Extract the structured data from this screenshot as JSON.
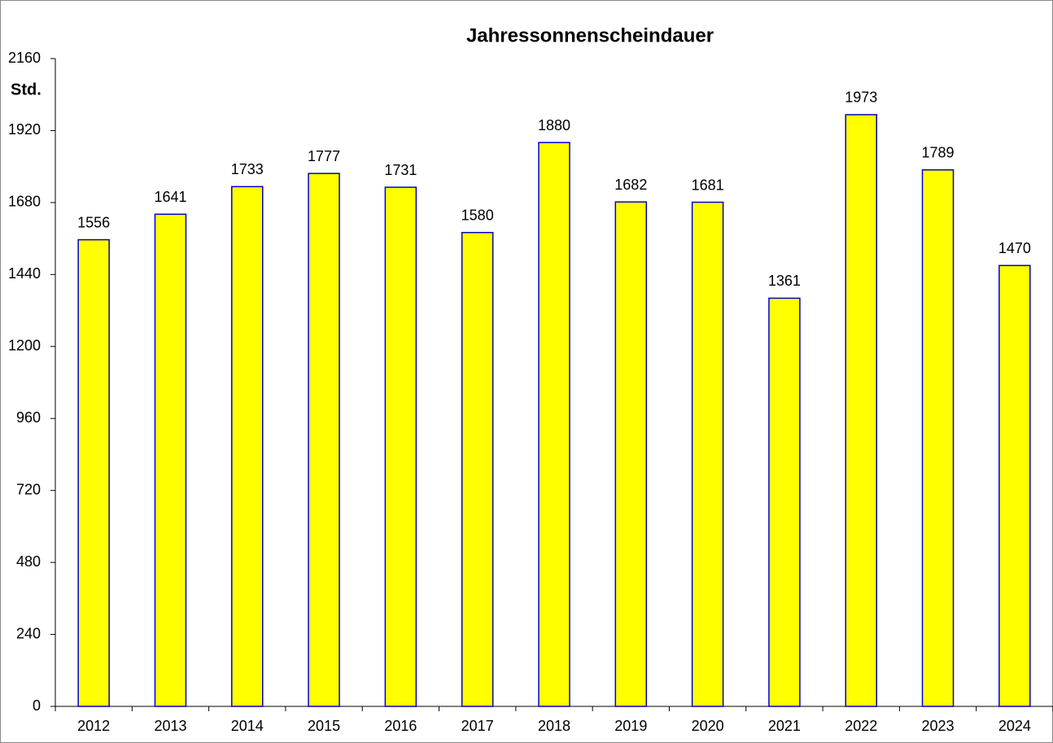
{
  "chart_data": {
    "type": "bar",
    "title": "Jahressonnenscheindauer",
    "y_label": "Std.",
    "categories": [
      "2012",
      "2013",
      "2014",
      "2015",
      "2016",
      "2017",
      "2018",
      "2019",
      "2020",
      "2021",
      "2022",
      "2023",
      "2024"
    ],
    "values": [
      1556,
      1641,
      1733,
      1777,
      1731,
      1580,
      1880,
      1682,
      1681,
      1361,
      1973,
      1789,
      1470
    ],
    "color": "#ffff00",
    "edge_color": "#0000cc",
    "ylim": [
      0,
      2160
    ],
    "yticks": [
      0,
      240,
      480,
      720,
      960,
      1200,
      1440,
      1680,
      1920,
      2160
    ],
    "grid": false
  }
}
